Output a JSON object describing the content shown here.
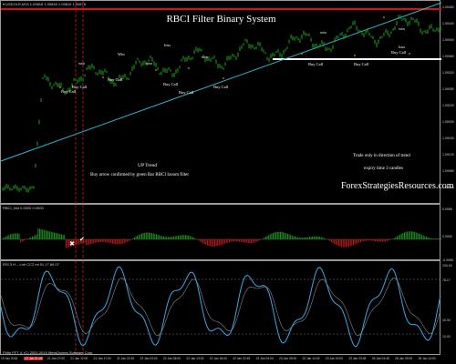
{
  "window": {
    "symbol_header": "▾ USDOLR,M15  1.09818 1.09846 1.09810 1.09878",
    "title": "RBCI Filter Binary System"
  },
  "annotations": {
    "uptrend_title": "UP Trend",
    "uptrend_note": "Buy arrow confirmed by green Bar RBCI Izoom filter",
    "trade_note_1": "Trade only in direction of trend",
    "trade_note_2": "expiry time 3 candles",
    "brand": "ForexStrategiesResources.com"
  },
  "signals": {
    "buy_call": "Buy Call",
    "win": "Win",
    "win_lower": "win",
    "loss": "loss"
  },
  "indicators": {
    "rbci_header": "RBCI_hist 0.0000 0.0000",
    "rsi_header": "RSI 3 H – Lnh CC2 ml 91.17 89.07",
    "footer_text": "FMfo FFT 4, (C) 2001-2015 MetaQuotes Software Corp."
  },
  "price_axis": [
    "1.09480",
    "1.09440",
    "1.09400",
    "1.09360",
    "1.09320",
    "1.09280",
    "1.09240",
    "1.09200",
    "1.09160",
    "1.09120",
    "1.09080",
    "1.09040"
  ],
  "rbci_axis": [
    "0.0056",
    "0.0000",
    "-0.0065"
  ],
  "rsi_axis": [
    "100.00",
    "78.17",
    "40.00",
    "10.00"
  ],
  "time_axis": [
    "19 Jan 2015",
    "21 Jan 01:45",
    "21 Jan 07:00",
    "21 Jan 12:00",
    "21 Jan 17:00",
    "21 Jan 22:30",
    "22 Jan 03:00",
    "22 Jan 08:00",
    "22 Jan 13:00",
    "22 Jan 18:00",
    "22 Jan 22:45",
    "23 Jan 04:00",
    "23 Jan 09:00",
    "23 Jan 14:00",
    "23 Jan 19:00",
    "23 Jan 23:45",
    "26 Jan 04:45",
    "26 Jan 09:00",
    "26 Jan 14:00"
  ],
  "time_axis_highlight": "21 Jan 01:45",
  "colors": {
    "candle_green": "#1ea51e",
    "resistance_red": "#e01010",
    "trendline_cyan": "#2fb7d0",
    "support_white": "#ffffff",
    "hist_red": "#c81e1e",
    "hist_green": "#1e9e1e",
    "rsi_line": "#3aa8e8",
    "highlight_bar": "#c81e1e"
  }
}
